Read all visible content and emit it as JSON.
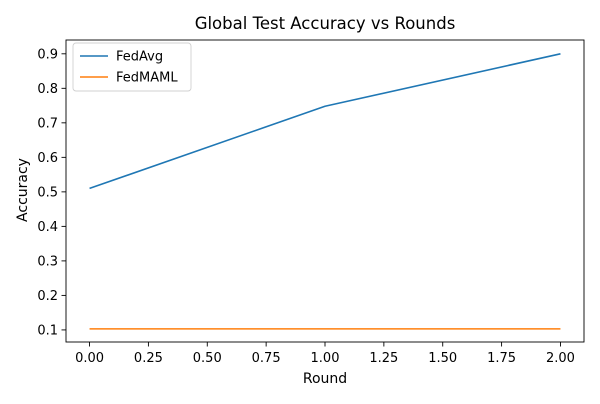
{
  "chart_data": {
    "type": "line",
    "title": "Global Test Accuracy vs Rounds",
    "xlabel": "Round",
    "ylabel": "Accuracy",
    "x": [
      0,
      1,
      2
    ],
    "xlim": [
      -0.1,
      2.1
    ],
    "ylim": [
      0.065,
      0.94
    ],
    "xticks": [
      0.0,
      0.25,
      0.5,
      0.75,
      1.0,
      1.25,
      1.5,
      1.75,
      2.0
    ],
    "xtick_labels": [
      "0.00",
      "0.25",
      "0.50",
      "0.75",
      "1.00",
      "1.25",
      "1.50",
      "1.75",
      "2.00"
    ],
    "yticks": [
      0.1,
      0.2,
      0.3,
      0.4,
      0.5,
      0.6,
      0.7,
      0.8,
      0.9
    ],
    "ytick_labels": [
      "0.1",
      "0.2",
      "0.3",
      "0.4",
      "0.5",
      "0.6",
      "0.7",
      "0.8",
      "0.9"
    ],
    "grid": false,
    "legend_position": "upper-left",
    "series": [
      {
        "name": "FedAvg",
        "color": "#1f77b4",
        "values": [
          0.51,
          0.748,
          0.9
        ]
      },
      {
        "name": "FedMAML",
        "color": "#ff7f0e",
        "values": [
          0.103,
          0.103,
          0.103
        ]
      }
    ]
  }
}
